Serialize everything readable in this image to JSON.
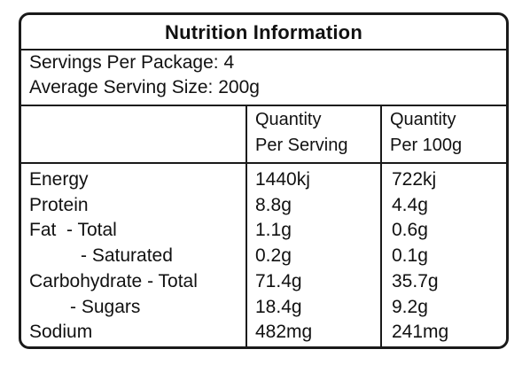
{
  "title": "Nutrition Information",
  "servings": {
    "per_package": "Servings Per Package: 4",
    "serving_size": "Average Serving Size: 200g"
  },
  "columns": {
    "per_serving": [
      "Quantity",
      "Per Serving"
    ],
    "per_100g": [
      "Quantity",
      "Per 100g"
    ]
  },
  "rows": [
    {
      "label": "Energy",
      "per_serving": "1440kj",
      "per_100g": "722kj"
    },
    {
      "label": "Protein",
      "per_serving": "8.8g",
      "per_100g": "4.4g"
    },
    {
      "label": "Fat  - Total",
      "per_serving": "1.1g",
      "per_100g": "0.6g"
    },
    {
      "label": "- Saturated",
      "per_serving": "0.2g",
      "per_100g": "0.1g"
    },
    {
      "label": "Carbohydrate - Total",
      "per_serving": "71.4g",
      "per_100g": "35.7g"
    },
    {
      "label": "- Sugars",
      "per_serving": "18.4g",
      "per_100g": "9.2g"
    },
    {
      "label": "Sodium",
      "per_serving": "482mg",
      "per_100g": "241mg"
    }
  ]
}
